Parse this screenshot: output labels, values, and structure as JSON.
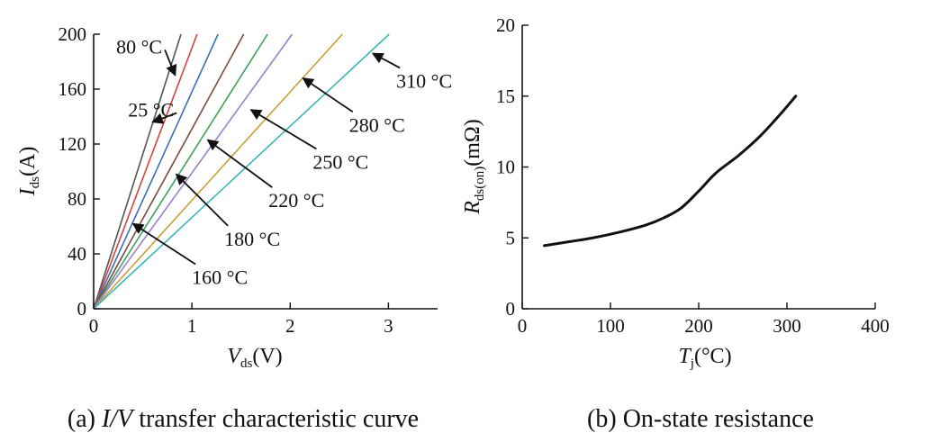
{
  "chart_data": [
    {
      "id": "a",
      "type": "line",
      "caption_prefix": "(a) ",
      "caption_italic": "I/V",
      "caption_suffix": " transfer characteristic curve",
      "xlabel_main": "V",
      "xlabel_sub": "ds",
      "xlabel_unit": "(V)",
      "ylabel_main": "I",
      "ylabel_sub": "ds",
      "ylabel_unit": "(A)",
      "xlim": [
        0,
        3.5
      ],
      "ylim": [
        0,
        200
      ],
      "xticks": [
        0,
        1,
        2,
        3
      ],
      "yticks": [
        0,
        40,
        80,
        120,
        160,
        200
      ],
      "series": [
        {
          "label": "25 °C",
          "color": "#555555",
          "slope": 225,
          "label_pos": [
            0.35,
            140
          ],
          "arrow_to": [
            0.6,
            136
          ]
        },
        {
          "label": "80 °C",
          "color": "#d94040",
          "slope": 190,
          "label_pos": [
            0.23,
            186
          ],
          "arrow_to": [
            0.83,
            170
          ]
        },
        {
          "label": "160 °C",
          "color": "#3a6fb5",
          "slope": 158,
          "label_pos": [
            1.0,
            18
          ],
          "arrow_to": [
            0.4,
            62
          ]
        },
        {
          "label": "180 °C",
          "color": "#7a4a3f",
          "slope": 131,
          "label_pos": [
            1.33,
            46
          ],
          "arrow_to": [
            0.84,
            98
          ]
        },
        {
          "label": "220 °C",
          "color": "#3fa05a",
          "slope": 113,
          "label_pos": [
            1.78,
            74
          ],
          "arrow_to": [
            1.16,
            123
          ]
        },
        {
          "label": "250 °C",
          "color": "#9f7fc8",
          "slope": 99,
          "label_pos": [
            2.23,
            102
          ],
          "arrow_to": [
            1.6,
            145
          ]
        },
        {
          "label": "280 °C",
          "color": "#c9a036",
          "slope": 79,
          "label_pos": [
            2.6,
            129
          ],
          "arrow_to": [
            2.13,
            168
          ]
        },
        {
          "label": "310 °C",
          "color": "#3bb7b5",
          "slope": 66.5,
          "label_pos": [
            3.08,
            161
          ],
          "arrow_to": [
            2.84,
            186
          ]
        }
      ]
    },
    {
      "id": "b",
      "type": "line",
      "caption_prefix": "(b) ",
      "caption_main": "On-state resistance",
      "xlabel_main": "T",
      "xlabel_sub": "j",
      "xlabel_unit": "(°C)",
      "ylabel_main": "R",
      "ylabel_sub": "ds(on)",
      "ylabel_unit": "(mΩ)",
      "xlim": [
        0,
        400
      ],
      "ylim": [
        0,
        20
      ],
      "xticks": [
        0,
        100,
        200,
        300,
        400
      ],
      "yticks": [
        0,
        5,
        10,
        15,
        20
      ],
      "series": [
        {
          "color": "#111111",
          "x": [
            25,
            50,
            80,
            110,
            140,
            160,
            180,
            200,
            220,
            245,
            270,
            295,
            310
          ],
          "y": [
            4.45,
            4.7,
            5.0,
            5.4,
            5.9,
            6.4,
            7.1,
            8.3,
            9.6,
            10.8,
            12.2,
            13.9,
            15.0
          ]
        }
      ]
    }
  ]
}
